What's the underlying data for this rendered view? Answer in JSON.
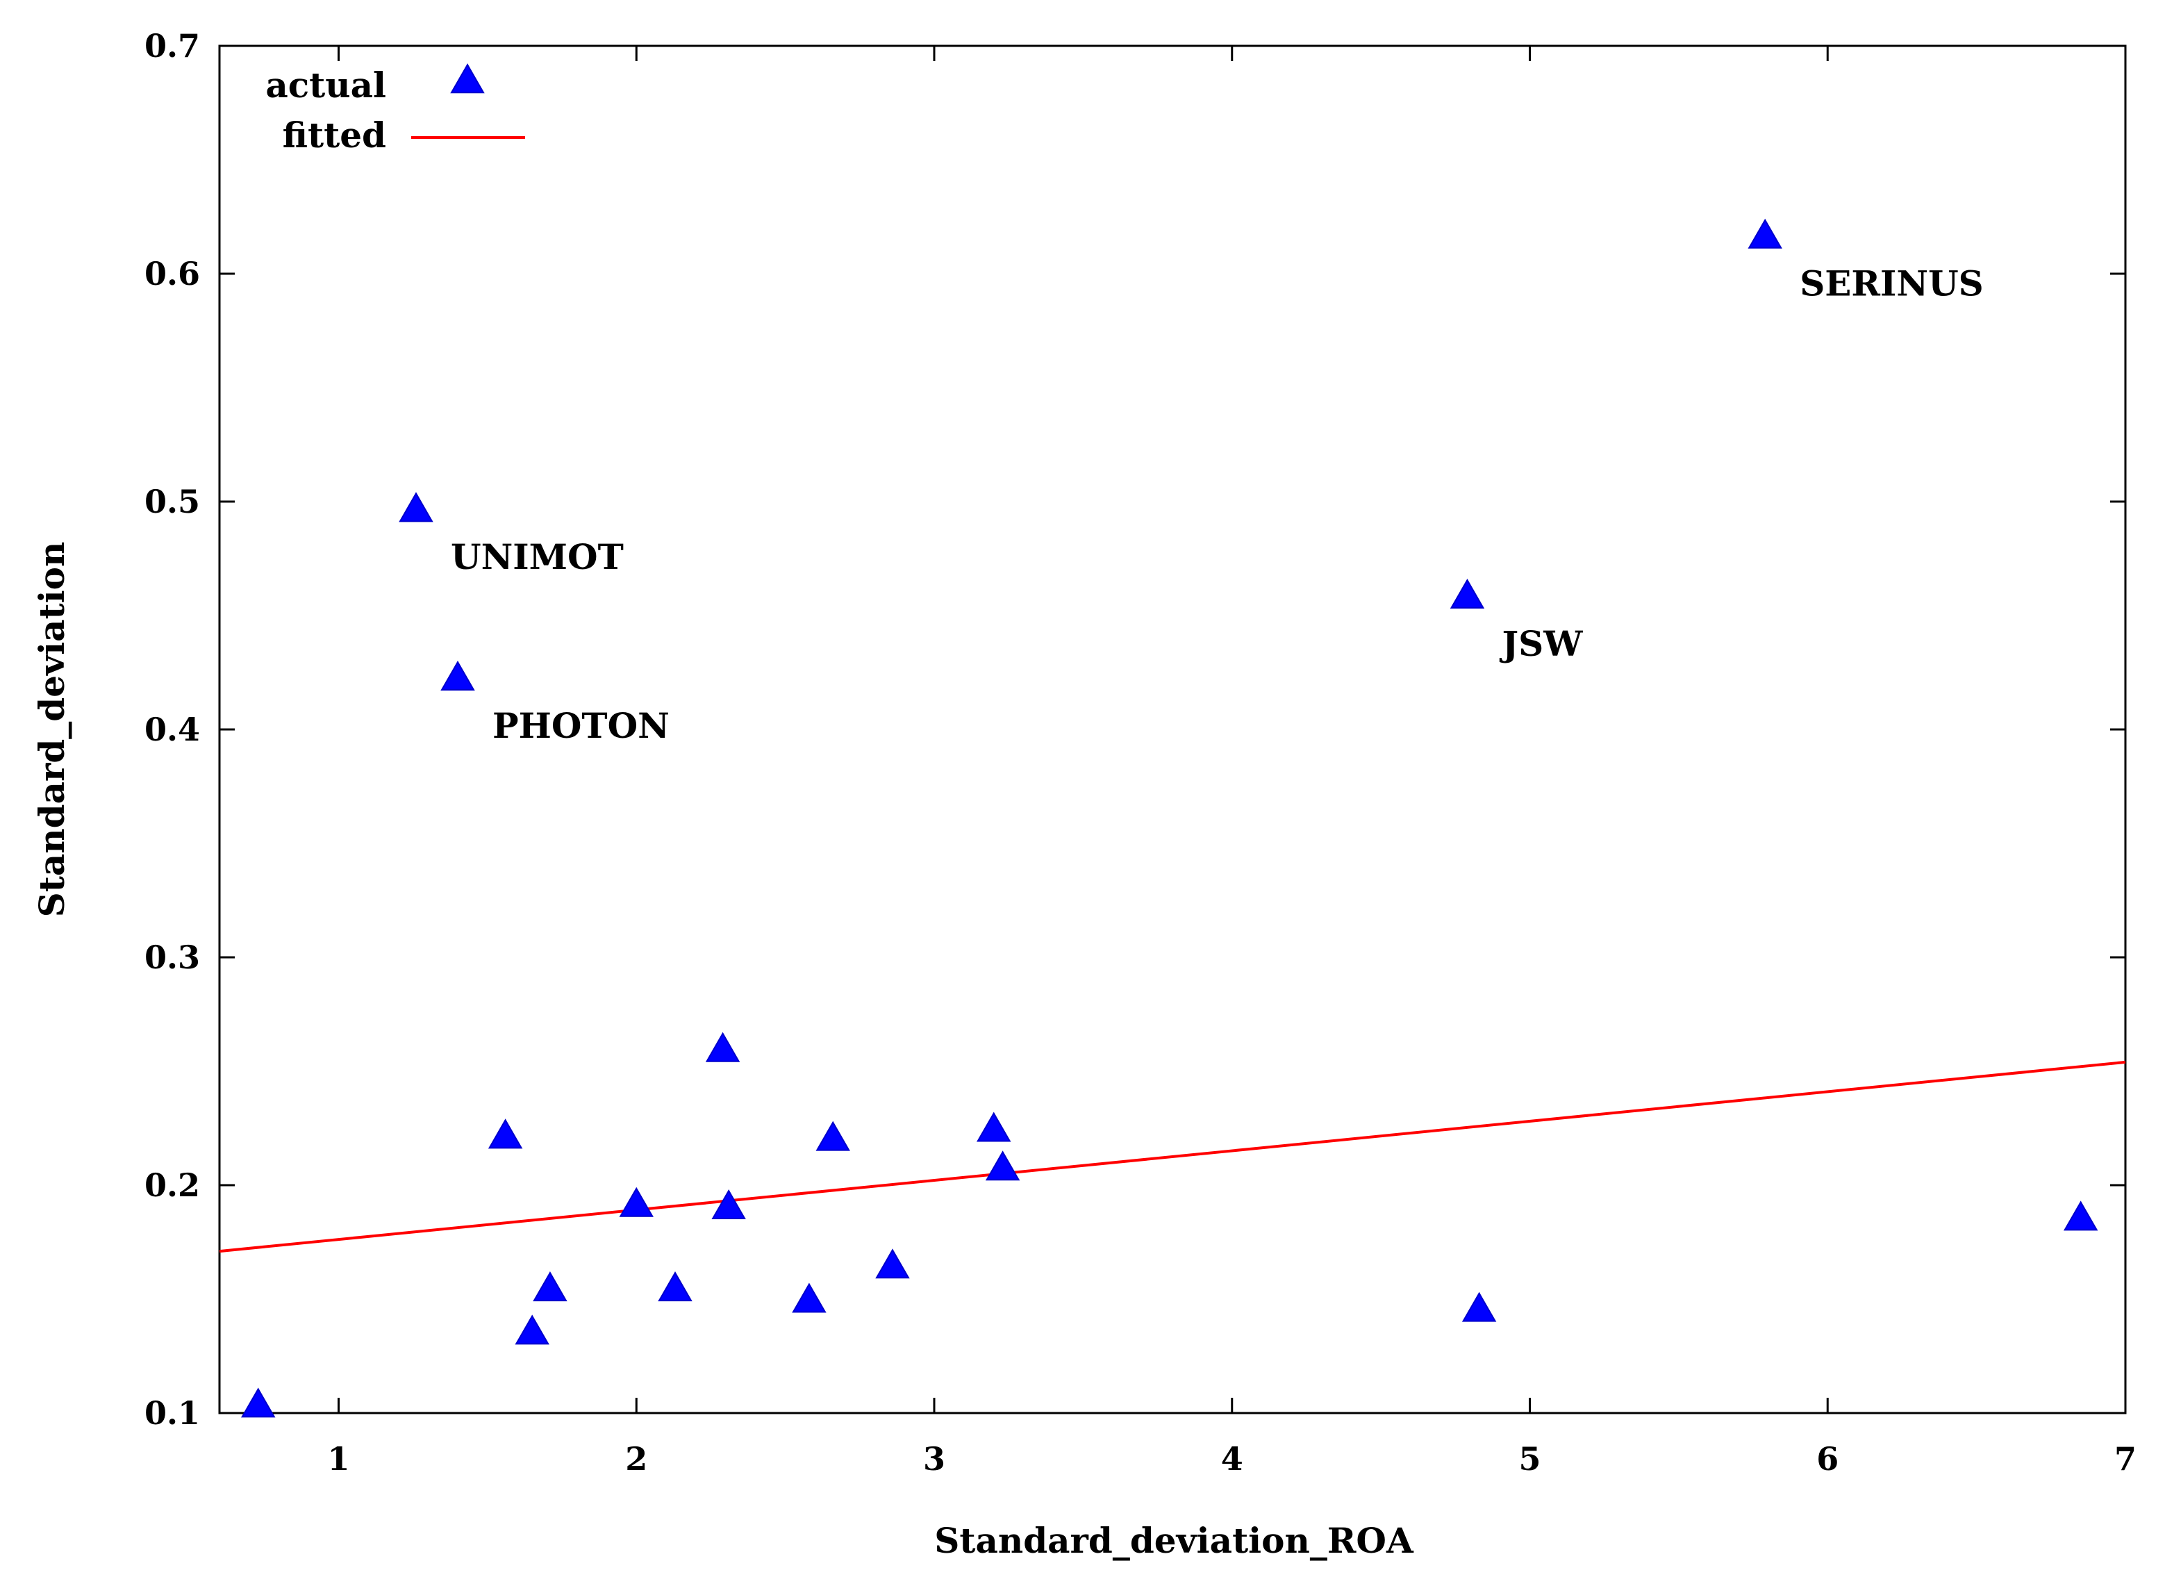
{
  "chart_data": {
    "type": "scatter",
    "title": "",
    "xlabel": "Standard_deviation_ROA",
    "ylabel": "Standard_deviation",
    "xlim": [
      0.6,
      7.0
    ],
    "ylim": [
      0.1,
      0.7
    ],
    "xticks": [
      1,
      2,
      3,
      4,
      5,
      6,
      7
    ],
    "yticks": [
      0.1,
      0.2,
      0.3,
      0.4,
      0.5,
      0.6,
      0.7
    ],
    "xtick_labels": [
      "1",
      "2",
      "3",
      "4",
      "5",
      "6",
      "7"
    ],
    "ytick_labels": [
      "0.1",
      "0.2",
      "0.3",
      "0.4",
      "0.5",
      "0.6",
      "0.7"
    ],
    "grid": false,
    "legend": {
      "position": "top-left",
      "entries": [
        {
          "label": "actual",
          "marker": "triangle",
          "color": "#0000ff"
        },
        {
          "label": "fitted",
          "marker": "line",
          "color": "#ff0000"
        }
      ]
    },
    "series": [
      {
        "name": "actual",
        "kind": "scatter",
        "marker": "triangle",
        "color": "#0000ff",
        "points": [
          {
            "x": 0.73,
            "y": 0.103
          },
          {
            "x": 1.26,
            "y": 0.496
          },
          {
            "x": 1.4,
            "y": 0.422
          },
          {
            "x": 1.56,
            "y": 0.221
          },
          {
            "x": 1.65,
            "y": 0.135
          },
          {
            "x": 1.71,
            "y": 0.154
          },
          {
            "x": 2.0,
            "y": 0.191
          },
          {
            "x": 2.13,
            "y": 0.154
          },
          {
            "x": 2.29,
            "y": 0.259
          },
          {
            "x": 2.31,
            "y": 0.19
          },
          {
            "x": 2.58,
            "y": 0.149
          },
          {
            "x": 2.66,
            "y": 0.22
          },
          {
            "x": 2.86,
            "y": 0.164
          },
          {
            "x": 3.2,
            "y": 0.224
          },
          {
            "x": 3.23,
            "y": 0.207
          },
          {
            "x": 4.79,
            "y": 0.458
          },
          {
            "x": 4.83,
            "y": 0.145
          },
          {
            "x": 5.79,
            "y": 0.616
          },
          {
            "x": 6.85,
            "y": 0.185
          }
        ]
      },
      {
        "name": "fitted",
        "kind": "line",
        "color": "#ff0000",
        "x": [
          0.6,
          7.0
        ],
        "y": [
          0.171,
          0.254
        ]
      }
    ],
    "annotations": [
      {
        "text": "UNIMOT",
        "x": 1.26,
        "y": 0.496
      },
      {
        "text": "PHOTON",
        "x": 1.4,
        "y": 0.422
      },
      {
        "text": "JSW",
        "x": 4.79,
        "y": 0.458
      },
      {
        "text": "SERINUS",
        "x": 5.79,
        "y": 0.616
      }
    ]
  }
}
